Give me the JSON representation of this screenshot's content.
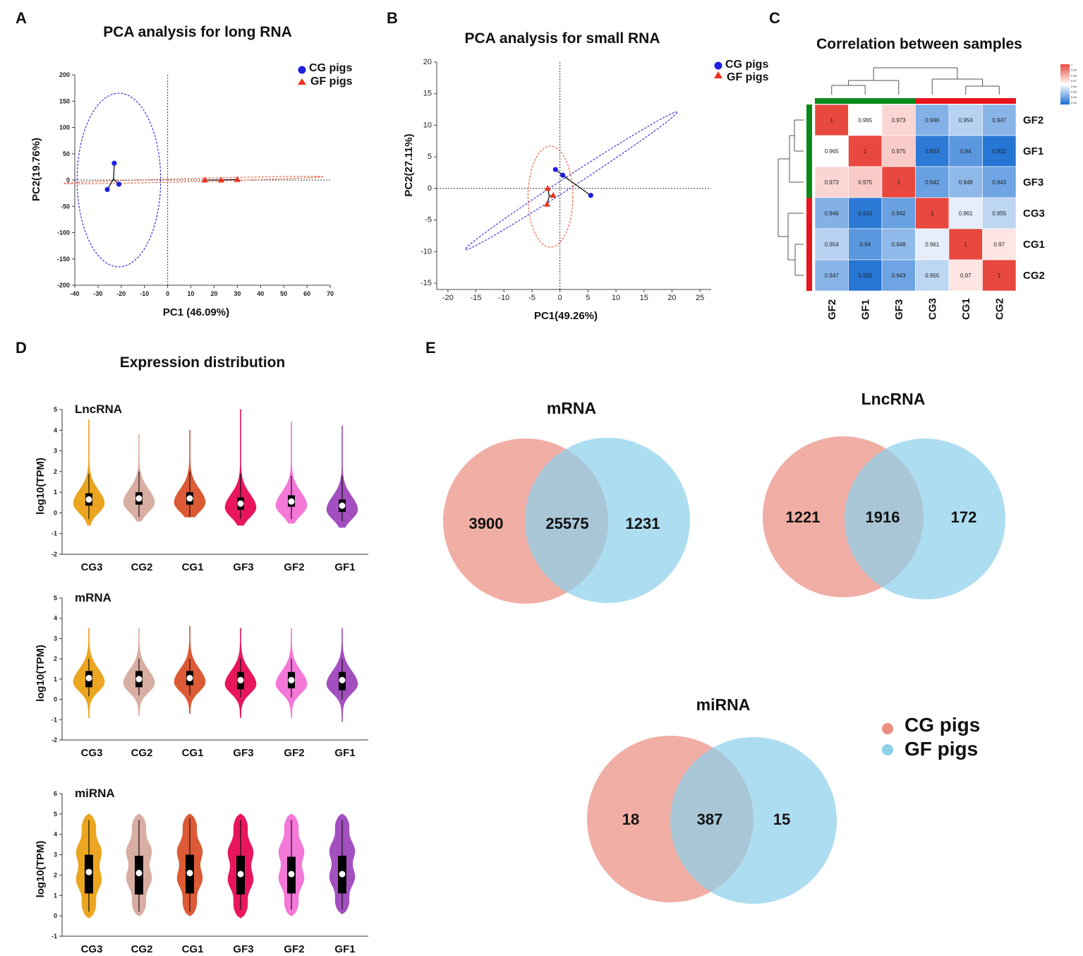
{
  "panels": {
    "A": "A",
    "B": "B",
    "C": "C",
    "D": "D",
    "E": "E"
  },
  "pca_legend": {
    "cg": "CG pigs",
    "gf": "GF pigs"
  },
  "chart_data": [
    {
      "id": "A",
      "type": "scatter",
      "title": "PCA analysis for long RNA",
      "xlabel": "PC1 (46.09%)",
      "ylabel": "PC2(19.76%)",
      "xlim": [
        -40,
        70
      ],
      "ylim": [
        -200,
        200
      ],
      "xticks": [
        -40,
        -30,
        -20,
        -10,
        0,
        10,
        20,
        30,
        40,
        50,
        60,
        70
      ],
      "yticks": [
        -200,
        -150,
        -100,
        -50,
        0,
        50,
        100,
        150,
        200
      ],
      "series": [
        {
          "name": "CG pigs",
          "color": "#2020e0",
          "marker": "circle",
          "points": [
            [
              -23,
              32
            ],
            [
              -26,
              -18
            ],
            [
              -21,
              -8
            ]
          ],
          "centroid": [
            -23.3,
            2
          ],
          "ellipse": {
            "cx": -21,
            "cy": 0,
            "rx": 18,
            "ry": 165,
            "angle": 0,
            "color": "#3333dd"
          }
        },
        {
          "name": "GF pigs",
          "color": "#ee3322",
          "marker": "triangle",
          "points": [
            [
              16,
              0
            ],
            [
              23,
              0
            ],
            [
              30,
              1
            ]
          ],
          "centroid": [
            23,
            0.3
          ],
          "ellipse": {
            "cx": 11,
            "cy": 0,
            "rx": 56,
            "ry": 3,
            "angle": -1.5,
            "color": "#ee6644"
          }
        }
      ]
    },
    {
      "id": "B",
      "type": "scatter",
      "title": "PCA analysis for small RNA",
      "xlabel": "PC1(49.26%)",
      "ylabel": "PC2(27.11%)",
      "xlim": [
        -22,
        27
      ],
      "ylim": [
        -16,
        20
      ],
      "xticks": [
        -20,
        -15,
        -10,
        -5,
        0,
        5,
        10,
        15,
        20,
        25
      ],
      "yticks": [
        -15,
        -10,
        -5,
        0,
        5,
        10,
        15,
        20
      ],
      "series": [
        {
          "name": "CG pigs",
          "color": "#2020e0",
          "marker": "circle",
          "points": [
            [
              -0.8,
              3
            ],
            [
              0.5,
              2.1
            ],
            [
              5.5,
              -1.1
            ]
          ],
          "centroid": [
            1.7,
            1.3
          ],
          "ellipse": {
            "cx": 2,
            "cy": 1.2,
            "rx": 22.5,
            "ry": 0.9,
            "angle": -33,
            "color": "#3333dd"
          }
        },
        {
          "name": "GF pigs",
          "color": "#ee3322",
          "marker": "triangle",
          "points": [
            [
              -2.2,
              0
            ],
            [
              -1.2,
              -1.1
            ],
            [
              -2.3,
              -2.5
            ]
          ],
          "centroid": [
            -1.9,
            -1.2
          ],
          "ellipse": {
            "cx": -1.7,
            "cy": -1.3,
            "rx": 4,
            "ry": 8,
            "angle": 0,
            "color": "#ee6644"
          }
        }
      ]
    },
    {
      "id": "C",
      "type": "heatmap",
      "title": "Correlation between samples",
      "rows": [
        "GF2",
        "GF1",
        "GF3",
        "CG3",
        "CG1",
        "CG2"
      ],
      "cols": [
        "GF2",
        "GF1",
        "GF3",
        "CG3",
        "CG1",
        "CG2"
      ],
      "values": [
        [
          1,
          0.965,
          0.973,
          0.946,
          0.954,
          0.947
        ],
        [
          0.965,
          1,
          0.975,
          0.933,
          0.94,
          0.932
        ],
        [
          0.973,
          0.975,
          1,
          0.942,
          0.948,
          0.943
        ],
        [
          0.946,
          0.933,
          0.942,
          1,
          0.961,
          0.955
        ],
        [
          0.954,
          0.94,
          0.948,
          0.961,
          1,
          0.97
        ],
        [
          0.947,
          0.932,
          0.943,
          0.955,
          0.97,
          1
        ]
      ],
      "color_range": [
        0.93,
        1
      ],
      "colorbar_ticks": [
        "1",
        "0.99",
        "0.98",
        "0.97",
        "0.96",
        "0.95",
        "0.94",
        "0.93"
      ],
      "groups": [
        {
          "name": "GF",
          "color": "#0a8a1a",
          "members": [
            "GF2",
            "GF1",
            "GF3"
          ]
        },
        {
          "name": "CG",
          "color": "#e8141e",
          "members": [
            "CG3",
            "CG1",
            "CG2"
          ]
        }
      ]
    },
    {
      "id": "D",
      "type": "violin",
      "title": "Expression distribution",
      "ylabel": "log10(TPM)",
      "samples": [
        "CG3",
        "CG2",
        "CG1",
        "GF3",
        "GF2",
        "GF1"
      ],
      "colors": [
        "#eba520",
        "#d9aea2",
        "#dc5a35",
        "#e8175d",
        "#f478d8",
        "#a44fc0"
      ],
      "panels": [
        {
          "name": "LncRNA",
          "ylim": [
            -2,
            5
          ],
          "yticks": [
            -2,
            -1,
            0,
            1,
            2,
            3,
            4,
            5
          ],
          "medians": [
            0.65,
            0.7,
            0.7,
            0.45,
            0.55,
            0.35
          ],
          "q1": [
            0.35,
            0.4,
            0.4,
            0.15,
            0.3,
            0.05
          ],
          "q3": [
            0.95,
            1.0,
            1.0,
            0.75,
            0.85,
            0.65
          ],
          "wlo": [
            -0.3,
            -0.2,
            -0.2,
            -0.3,
            -0.3,
            -0.4
          ],
          "whi": [
            1.9,
            2.0,
            2.0,
            1.9,
            1.8,
            1.8
          ],
          "min": [
            -0.6,
            -0.4,
            -0.2,
            -0.6,
            -0.5,
            -0.7
          ],
          "max": [
            4.5,
            3.8,
            4.0,
            5.0,
            4.4,
            4.2
          ]
        },
        {
          "name": "mRNA",
          "ylim": [
            -2,
            5
          ],
          "yticks": [
            -2,
            -1,
            0,
            1,
            2,
            3,
            4,
            5
          ],
          "medians": [
            1.05,
            1.0,
            1.05,
            0.95,
            0.95,
            0.95
          ],
          "q1": [
            0.6,
            0.6,
            0.7,
            0.5,
            0.55,
            0.45
          ],
          "q3": [
            1.4,
            1.4,
            1.4,
            1.35,
            1.35,
            1.35
          ],
          "wlo": [
            0.15,
            0.2,
            0.2,
            0.1,
            0.1,
            0.0
          ],
          "whi": [
            2.0,
            2.0,
            2.0,
            2.0,
            2.0,
            2.0
          ],
          "min": [
            -0.9,
            -0.8,
            -0.7,
            -0.9,
            -0.9,
            -1.1
          ],
          "max": [
            3.5,
            3.5,
            3.6,
            3.5,
            3.5,
            3.5
          ]
        },
        {
          "name": "miRNA",
          "ylim": [
            -1,
            6
          ],
          "yticks": [
            -1,
            0,
            1,
            2,
            3,
            4,
            5,
            6
          ],
          "medians": [
            2.15,
            2.1,
            2.1,
            2.05,
            2.05,
            2.05
          ],
          "q1": [
            1.1,
            1.05,
            1.1,
            1.05,
            1.1,
            1.1
          ],
          "q3": [
            3.0,
            2.95,
            3.0,
            2.95,
            2.9,
            2.95
          ],
          "wlo": [
            0.2,
            0.2,
            0.2,
            0.3,
            0.3,
            0.3
          ],
          "whi": [
            4.7,
            4.7,
            4.8,
            4.7,
            4.7,
            4.7
          ],
          "min": [
            -0.1,
            0.0,
            0.0,
            -0.1,
            0.0,
            0.1
          ],
          "max": [
            5.0,
            5.0,
            5.0,
            5.0,
            5.0,
            5.0
          ]
        }
      ]
    },
    {
      "id": "E",
      "type": "venn",
      "legend": [
        "CG pigs",
        "GF pigs"
      ],
      "colors": [
        "#ea8f82",
        "#8ed0ea"
      ],
      "diagrams": [
        {
          "name": "mRNA",
          "left": "3900",
          "both": "25575",
          "right": "1231"
        },
        {
          "name": "LncRNA",
          "left": "1221",
          "both": "1916",
          "right": "172"
        },
        {
          "name": "miRNA",
          "left": "18",
          "both": "387",
          "right": "15"
        }
      ]
    }
  ]
}
